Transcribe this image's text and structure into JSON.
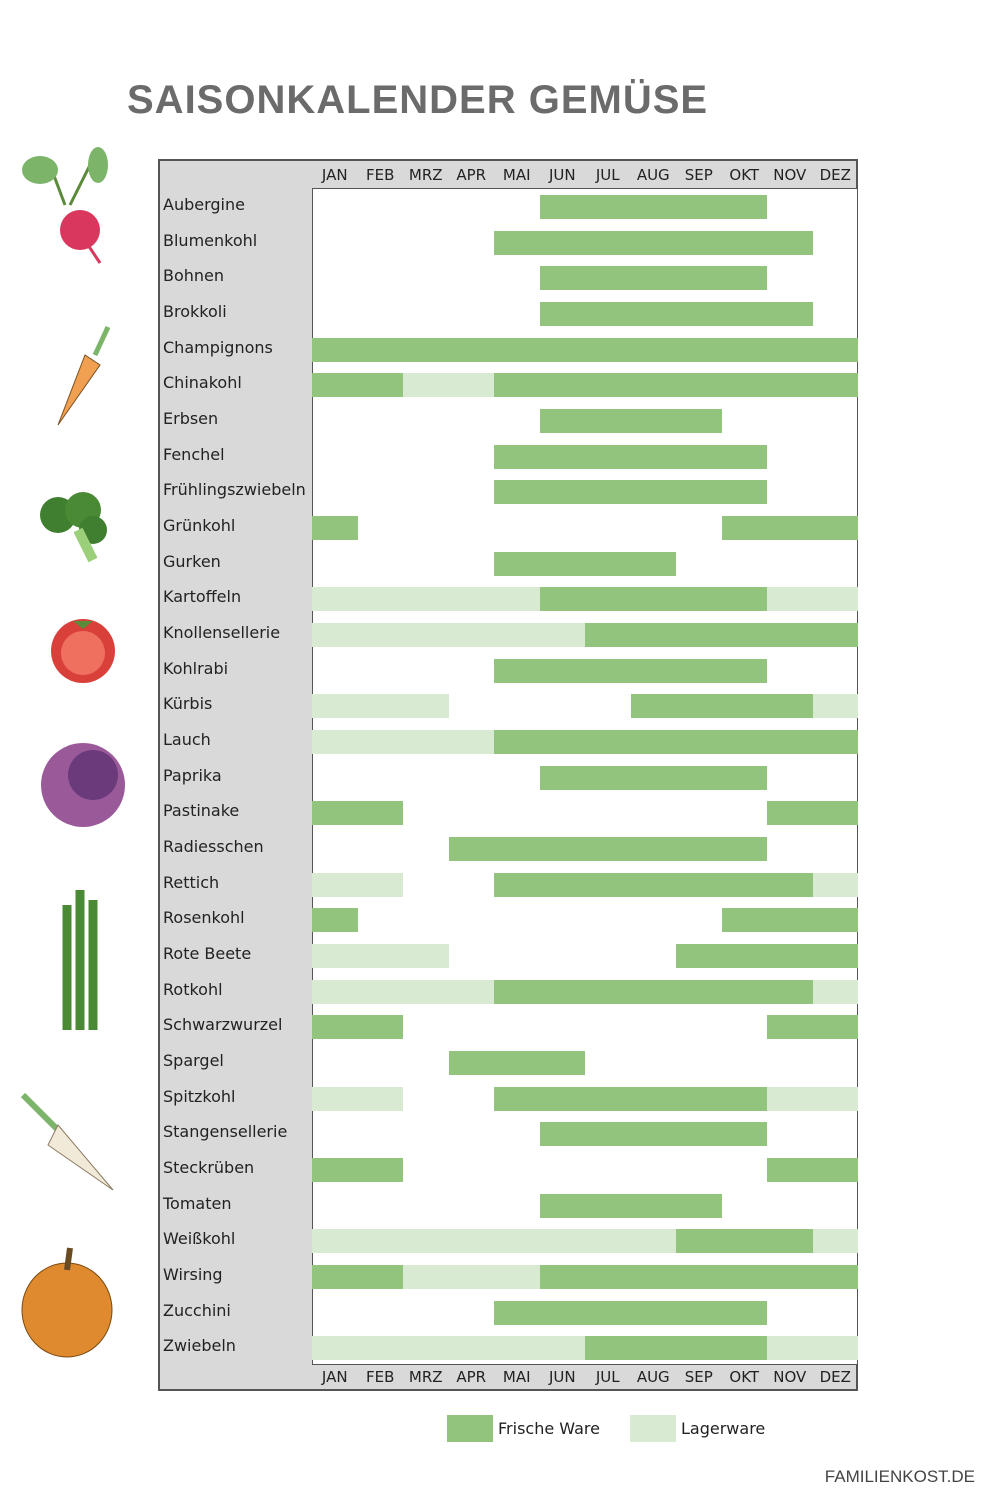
{
  "title": "SAISONKALENDER GEMÜSE",
  "brand": "FAMILIENKOST.DE",
  "colors": {
    "fresh": "#93c47d",
    "storage": "#d9ead3"
  },
  "chart_data": {
    "type": "gantt",
    "title": "SAISONKALENDER GEMÜSE",
    "months": [
      "JAN",
      "FEB",
      "MRZ",
      "APR",
      "MAI",
      "JUN",
      "JUL",
      "AUG",
      "SEP",
      "OKT",
      "NOV",
      "DEZ"
    ],
    "legend": [
      {
        "key": "fresh",
        "label": "Frische Ware"
      },
      {
        "key": "storage",
        "label": "Lagerware"
      }
    ],
    "rows": [
      {
        "name": "Aubergine",
        "fresh": [
          [
            6,
            10
          ]
        ],
        "storage": []
      },
      {
        "name": "Blumenkohl",
        "fresh": [
          [
            5,
            11
          ]
        ],
        "storage": []
      },
      {
        "name": "Bohnen",
        "fresh": [
          [
            6,
            10
          ]
        ],
        "storage": []
      },
      {
        "name": "Brokkoli",
        "fresh": [
          [
            6,
            11
          ]
        ],
        "storage": []
      },
      {
        "name": "Champignons",
        "fresh": [
          [
            1,
            12
          ]
        ],
        "storage": []
      },
      {
        "name": "Chinakohl",
        "fresh": [
          [
            1,
            2
          ],
          [
            5,
            12
          ]
        ],
        "storage": [
          [
            3,
            4
          ]
        ]
      },
      {
        "name": "Erbsen",
        "fresh": [
          [
            6,
            9
          ]
        ],
        "storage": []
      },
      {
        "name": "Fenchel",
        "fresh": [
          [
            5,
            10
          ]
        ],
        "storage": []
      },
      {
        "name": "Frühlingszwiebeln",
        "fresh": [
          [
            5,
            10
          ]
        ],
        "storage": []
      },
      {
        "name": "Grünkohl",
        "fresh": [
          [
            1,
            1
          ],
          [
            10,
            12
          ]
        ],
        "storage": []
      },
      {
        "name": "Gurken",
        "fresh": [
          [
            5,
            8
          ]
        ],
        "storage": []
      },
      {
        "name": "Kartoffeln",
        "fresh": [
          [
            6,
            10
          ]
        ],
        "storage": [
          [
            1,
            5
          ],
          [
            11,
            12
          ]
        ]
      },
      {
        "name": "Knollensellerie",
        "fresh": [
          [
            7,
            12
          ]
        ],
        "storage": [
          [
            1,
            6
          ]
        ]
      },
      {
        "name": "Kohlrabi",
        "fresh": [
          [
            5,
            10
          ]
        ],
        "storage": []
      },
      {
        "name": "Kürbis",
        "fresh": [
          [
            8,
            11
          ]
        ],
        "storage": [
          [
            1,
            3
          ],
          [
            12,
            12
          ]
        ]
      },
      {
        "name": "Lauch",
        "fresh": [
          [
            5,
            12
          ]
        ],
        "storage": [
          [
            1,
            4
          ]
        ]
      },
      {
        "name": "Paprika",
        "fresh": [
          [
            6,
            10
          ]
        ],
        "storage": []
      },
      {
        "name": "Pastinake",
        "fresh": [
          [
            1,
            2
          ],
          [
            11,
            12
          ]
        ],
        "storage": []
      },
      {
        "name": "Radiesschen",
        "fresh": [
          [
            4,
            10
          ]
        ],
        "storage": []
      },
      {
        "name": "Rettich",
        "fresh": [
          [
            5,
            11
          ]
        ],
        "storage": [
          [
            1,
            2
          ],
          [
            12,
            12
          ]
        ]
      },
      {
        "name": "Rosenkohl",
        "fresh": [
          [
            1,
            1
          ],
          [
            10,
            12
          ]
        ],
        "storage": []
      },
      {
        "name": "Rote Beete",
        "fresh": [
          [
            9,
            12
          ]
        ],
        "storage": [
          [
            1,
            3
          ]
        ]
      },
      {
        "name": "Rotkohl",
        "fresh": [
          [
            5,
            11
          ]
        ],
        "storage": [
          [
            1,
            4
          ],
          [
            12,
            12
          ]
        ]
      },
      {
        "name": "Schwarzwurzel",
        "fresh": [
          [
            1,
            2
          ],
          [
            11,
            12
          ]
        ],
        "storage": []
      },
      {
        "name": "Spargel",
        "fresh": [
          [
            4,
            6
          ]
        ],
        "storage": []
      },
      {
        "name": "Spitzkohl",
        "fresh": [
          [
            5,
            10
          ]
        ],
        "storage": [
          [
            1,
            2
          ],
          [
            11,
            12
          ]
        ]
      },
      {
        "name": "Stangensellerie",
        "fresh": [
          [
            6,
            10
          ]
        ],
        "storage": []
      },
      {
        "name": "Steckrüben",
        "fresh": [
          [
            1,
            2
          ],
          [
            11,
            12
          ]
        ],
        "storage": []
      },
      {
        "name": "Tomaten",
        "fresh": [
          [
            6,
            9
          ]
        ],
        "storage": []
      },
      {
        "name": "Weißkohl",
        "fresh": [
          [
            9,
            11
          ]
        ],
        "storage": [
          [
            1,
            8
          ],
          [
            12,
            12
          ]
        ]
      },
      {
        "name": "Wirsing",
        "fresh": [
          [
            1,
            2
          ],
          [
            6,
            12
          ]
        ],
        "storage": [
          [
            3,
            5
          ]
        ]
      },
      {
        "name": "Zucchini",
        "fresh": [
          [
            5,
            10
          ]
        ],
        "storage": []
      },
      {
        "name": "Zwiebeln",
        "fresh": [
          [
            7,
            10
          ]
        ],
        "storage": [
          [
            1,
            6
          ],
          [
            11,
            12
          ]
        ]
      }
    ]
  }
}
